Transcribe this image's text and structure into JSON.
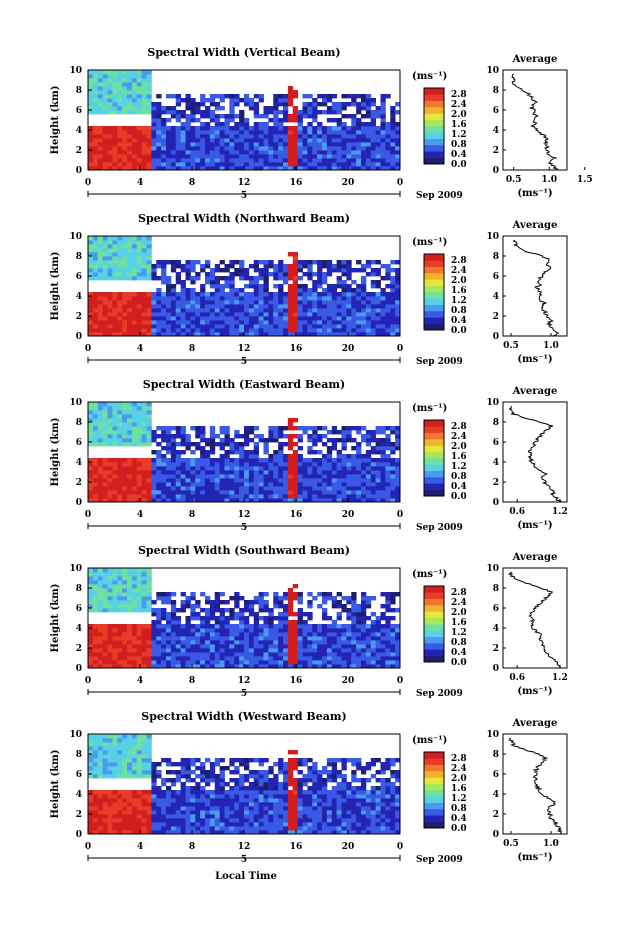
{
  "figure": {
    "xlabel_bottom": "Local Time",
    "date_label": "Sep 2009",
    "date_day": "5",
    "colorbar_unit": "(ms⁻¹)",
    "colorbar_ticks": [
      "0.0",
      "0.4",
      "0.8",
      "1.2",
      "1.6",
      "2.0",
      "2.4",
      "2.8"
    ],
    "colormap": [
      "#1e1e6e",
      "#2424b4",
      "#3a5ae6",
      "#4a9bf0",
      "#58d0e6",
      "#6ee0a0",
      "#a8e65a",
      "#e6e63c",
      "#f0b42c",
      "#f0782c",
      "#e63c28",
      "#d21e1e"
    ]
  },
  "chart_data": [
    {
      "type": "heatmap",
      "title": "Spectral Width (Vertical Beam)",
      "ylabel": "Height (km)",
      "x_ticks": [
        "0",
        "4",
        "8",
        "12",
        "16",
        "20",
        "0"
      ],
      "y_ticks": [
        "0",
        "2",
        "4",
        "6",
        "8",
        "10"
      ],
      "xlim": [
        0,
        24
      ],
      "ylim": [
        0,
        10
      ],
      "colorbar_range": [
        0.0,
        2.8
      ],
      "regions": [
        {
          "x": [
            0,
            4.7
          ],
          "y": [
            5.5,
            10
          ],
          "value": 1.1
        },
        {
          "x": [
            0,
            4.7
          ],
          "y": [
            0,
            4.5
          ],
          "value": 2.6
        },
        {
          "x": [
            4.7,
            24
          ],
          "y": [
            0,
            4.5
          ],
          "value": 0.5
        },
        {
          "x": [
            4.7,
            24
          ],
          "y": [
            4.5,
            7.5
          ],
          "value": 0.4
        },
        {
          "x": [
            15.4,
            16.2
          ],
          "y": [
            0.5,
            8.3
          ],
          "value": 2.8
        }
      ],
      "average_profile": {
        "title": "Average",
        "xlabel": "(ms⁻¹)",
        "x_ticks": [
          "0.5",
          "1.0",
          "1.5"
        ],
        "y_ticks": [
          "0",
          "2",
          "4",
          "6",
          "8",
          "10"
        ],
        "xlim": [
          0.35,
          1.25
        ],
        "ylim": [
          0,
          10
        ],
        "profile": [
          [
            1.1,
            0.0
          ],
          [
            1.05,
            0.4
          ],
          [
            1.0,
            0.8
          ],
          [
            1.08,
            1.2
          ],
          [
            1.0,
            1.6
          ],
          [
            0.96,
            2.0
          ],
          [
            0.97,
            2.4
          ],
          [
            0.95,
            2.8
          ],
          [
            0.97,
            3.2
          ],
          [
            0.9,
            3.6
          ],
          [
            0.82,
            4.0
          ],
          [
            0.78,
            4.4
          ],
          [
            0.8,
            4.8
          ],
          [
            0.82,
            5.2
          ],
          [
            0.8,
            5.6
          ],
          [
            0.78,
            6.0
          ],
          [
            0.75,
            6.4
          ],
          [
            0.8,
            6.8
          ],
          [
            0.76,
            7.2
          ],
          [
            0.7,
            7.6
          ],
          [
            0.62,
            8.0
          ],
          [
            0.52,
            8.4
          ],
          [
            0.5,
            8.8
          ],
          [
            0.48,
            9.2
          ],
          [
            0.5,
            9.6
          ]
        ]
      }
    },
    {
      "type": "heatmap",
      "title": "Spectral Width (Northward Beam)",
      "ylabel": "Height (km)",
      "x_ticks": [
        "0",
        "4",
        "8",
        "12",
        "16",
        "20",
        "0"
      ],
      "y_ticks": [
        "0",
        "2",
        "4",
        "6",
        "8",
        "10"
      ],
      "xlim": [
        0,
        24
      ],
      "ylim": [
        0,
        10
      ],
      "colorbar_range": [
        0.0,
        2.8
      ],
      "regions": [
        {
          "x": [
            0,
            4.7
          ],
          "y": [
            5.5,
            10
          ],
          "value": 1.1
        },
        {
          "x": [
            0,
            4.7
          ],
          "y": [
            0,
            4.5
          ],
          "value": 2.6
        },
        {
          "x": [
            4.7,
            24
          ],
          "y": [
            0,
            4.5
          ],
          "value": 0.5
        },
        {
          "x": [
            4.7,
            24
          ],
          "y": [
            4.5,
            7.5
          ],
          "value": 0.4
        },
        {
          "x": [
            15.4,
            16.2
          ],
          "y": [
            0.5,
            8.3
          ],
          "value": 2.8
        }
      ],
      "average_profile": {
        "title": "Average",
        "xlabel": "(ms⁻¹)",
        "x_ticks": [
          "0.5",
          "1.0"
        ],
        "y_ticks": [
          "0",
          "2",
          "4",
          "6",
          "8",
          "10"
        ],
        "xlim": [
          0.4,
          1.2
        ],
        "ylim": [
          0,
          10
        ],
        "profile": [
          [
            1.05,
            0.0
          ],
          [
            1.08,
            0.4
          ],
          [
            1.0,
            0.8
          ],
          [
            0.98,
            1.2
          ],
          [
            1.0,
            1.6
          ],
          [
            0.95,
            2.0
          ],
          [
            0.92,
            2.4
          ],
          [
            0.9,
            2.8
          ],
          [
            0.92,
            3.2
          ],
          [
            0.88,
            3.6
          ],
          [
            0.85,
            4.0
          ],
          [
            0.88,
            4.4
          ],
          [
            0.82,
            4.8
          ],
          [
            0.86,
            5.2
          ],
          [
            0.85,
            5.6
          ],
          [
            0.88,
            6.0
          ],
          [
            0.92,
            6.4
          ],
          [
            0.98,
            6.8
          ],
          [
            0.95,
            7.2
          ],
          [
            1.0,
            7.6
          ],
          [
            0.88,
            8.0
          ],
          [
            0.72,
            8.4
          ],
          [
            0.6,
            8.8
          ],
          [
            0.55,
            9.2
          ],
          [
            0.55,
            9.6
          ]
        ]
      }
    },
    {
      "type": "heatmap",
      "title": "Spectral Width (Eastward Beam)",
      "ylabel": "Height (km)",
      "x_ticks": [
        "0",
        "4",
        "8",
        "12",
        "16",
        "20",
        "0"
      ],
      "y_ticks": [
        "0",
        "2",
        "4",
        "6",
        "8",
        "10"
      ],
      "xlim": [
        0,
        24
      ],
      "ylim": [
        0,
        10
      ],
      "colorbar_range": [
        0.0,
        2.8
      ],
      "regions": [
        {
          "x": [
            0,
            4.7
          ],
          "y": [
            5.5,
            10
          ],
          "value": 1.1
        },
        {
          "x": [
            0,
            4.7
          ],
          "y": [
            0,
            4.5
          ],
          "value": 2.6
        },
        {
          "x": [
            4.7,
            24
          ],
          "y": [
            0,
            4.5
          ],
          "value": 0.5
        },
        {
          "x": [
            4.7,
            24
          ],
          "y": [
            4.5,
            7.5
          ],
          "value": 0.4
        },
        {
          "x": [
            15.4,
            16.2
          ],
          "y": [
            0.5,
            8.3
          ],
          "value": 2.8
        }
      ],
      "average_profile": {
        "title": "Average",
        "xlabel": "(ms⁻¹)",
        "x_ticks": [
          "0.6",
          "1.2"
        ],
        "y_ticks": [
          "0",
          "2",
          "4",
          "6",
          "8",
          "10"
        ],
        "xlim": [
          0.4,
          1.3
        ],
        "ylim": [
          0,
          10
        ],
        "profile": [
          [
            1.2,
            0.0
          ],
          [
            1.15,
            0.4
          ],
          [
            1.1,
            0.8
          ],
          [
            1.1,
            1.2
          ],
          [
            1.05,
            1.6
          ],
          [
            0.98,
            2.0
          ],
          [
            0.95,
            2.4
          ],
          [
            1.0,
            2.8
          ],
          [
            0.92,
            3.2
          ],
          [
            0.85,
            3.6
          ],
          [
            0.8,
            4.0
          ],
          [
            0.78,
            4.4
          ],
          [
            0.8,
            4.8
          ],
          [
            0.78,
            5.2
          ],
          [
            0.82,
            5.6
          ],
          [
            0.85,
            6.0
          ],
          [
            0.9,
            6.4
          ],
          [
            0.95,
            6.8
          ],
          [
            1.0,
            7.2
          ],
          [
            1.1,
            7.6
          ],
          [
            0.9,
            8.0
          ],
          [
            0.7,
            8.4
          ],
          [
            0.55,
            8.8
          ],
          [
            0.5,
            9.2
          ],
          [
            0.52,
            9.6
          ]
        ]
      }
    },
    {
      "type": "heatmap",
      "title": "Spectral Width (Southward Beam)",
      "ylabel": "Height (km)",
      "x_ticks": [
        "0",
        "4",
        "8",
        "12",
        "16",
        "20",
        "0"
      ],
      "y_ticks": [
        "0",
        "2",
        "4",
        "6",
        "8",
        "10"
      ],
      "xlim": [
        0,
        24
      ],
      "ylim": [
        0,
        10
      ],
      "colorbar_range": [
        0.0,
        2.8
      ],
      "regions": [
        {
          "x": [
            0,
            4.7
          ],
          "y": [
            5.5,
            10
          ],
          "value": 1.1
        },
        {
          "x": [
            0,
            4.7
          ],
          "y": [
            0,
            4.5
          ],
          "value": 2.6
        },
        {
          "x": [
            4.7,
            24
          ],
          "y": [
            0,
            4.5
          ],
          "value": 0.5
        },
        {
          "x": [
            4.7,
            24
          ],
          "y": [
            4.5,
            7.5
          ],
          "value": 0.4
        },
        {
          "x": [
            15.4,
            16.2
          ],
          "y": [
            0.5,
            8.3
          ],
          "value": 2.8
        }
      ],
      "average_profile": {
        "title": "Average",
        "xlabel": "(ms⁻¹)",
        "x_ticks": [
          "0.6",
          "1.2"
        ],
        "y_ticks": [
          "0",
          "2",
          "4",
          "6",
          "8",
          "10"
        ],
        "xlim": [
          0.4,
          1.3
        ],
        "ylim": [
          0,
          10
        ],
        "profile": [
          [
            1.2,
            0.0
          ],
          [
            1.15,
            0.4
          ],
          [
            1.12,
            0.8
          ],
          [
            1.05,
            1.2
          ],
          [
            1.0,
            1.6
          ],
          [
            0.98,
            2.0
          ],
          [
            0.95,
            2.4
          ],
          [
            0.92,
            2.8
          ],
          [
            0.95,
            3.2
          ],
          [
            0.88,
            3.6
          ],
          [
            0.82,
            4.0
          ],
          [
            0.8,
            4.4
          ],
          [
            0.82,
            4.8
          ],
          [
            0.78,
            5.2
          ],
          [
            0.8,
            5.6
          ],
          [
            0.85,
            6.0
          ],
          [
            0.92,
            6.4
          ],
          [
            0.98,
            6.8
          ],
          [
            1.02,
            7.2
          ],
          [
            1.08,
            7.6
          ],
          [
            0.95,
            8.0
          ],
          [
            0.78,
            8.4
          ],
          [
            0.6,
            8.8
          ],
          [
            0.52,
            9.2
          ],
          [
            0.5,
            9.6
          ]
        ]
      }
    },
    {
      "type": "heatmap",
      "title": "Spectral Width (Westward Beam)",
      "ylabel": "Height (km)",
      "x_ticks": [
        "0",
        "4",
        "8",
        "12",
        "16",
        "20",
        "0"
      ],
      "y_ticks": [
        "0",
        "2",
        "4",
        "6",
        "8",
        "10"
      ],
      "xlim": [
        0,
        24
      ],
      "ylim": [
        0,
        10
      ],
      "colorbar_range": [
        0.0,
        2.8
      ],
      "regions": [
        {
          "x": [
            0,
            4.7
          ],
          "y": [
            5.5,
            10
          ],
          "value": 1.1
        },
        {
          "x": [
            0,
            4.7
          ],
          "y": [
            0,
            4.5
          ],
          "value": 2.6
        },
        {
          "x": [
            4.7,
            24
          ],
          "y": [
            0,
            4.5
          ],
          "value": 0.5
        },
        {
          "x": [
            4.7,
            24
          ],
          "y": [
            4.5,
            7.5
          ],
          "value": 0.4
        },
        {
          "x": [
            15.4,
            16.2
          ],
          "y": [
            0.5,
            8.3
          ],
          "value": 2.8
        }
      ],
      "average_profile": {
        "title": "Average",
        "xlabel": "(ms⁻¹)",
        "x_ticks": [
          "0.5",
          "1.0"
        ],
        "y_ticks": [
          "0",
          "2",
          "4",
          "6",
          "8",
          "10"
        ],
        "xlim": [
          0.4,
          1.2
        ],
        "ylim": [
          0,
          10
        ],
        "profile": [
          [
            1.12,
            0.0
          ],
          [
            1.1,
            0.4
          ],
          [
            1.08,
            0.8
          ],
          [
            1.05,
            1.2
          ],
          [
            1.0,
            1.6
          ],
          [
            0.98,
            2.0
          ],
          [
            0.95,
            2.4
          ],
          [
            1.0,
            2.8
          ],
          [
            1.05,
            3.2
          ],
          [
            0.95,
            3.6
          ],
          [
            0.88,
            4.0
          ],
          [
            0.85,
            4.4
          ],
          [
            0.82,
            4.8
          ],
          [
            0.8,
            5.2
          ],
          [
            0.8,
            5.6
          ],
          [
            0.8,
            6.0
          ],
          [
            0.82,
            6.4
          ],
          [
            0.85,
            6.8
          ],
          [
            0.9,
            7.2
          ],
          [
            0.92,
            7.6
          ],
          [
            0.85,
            8.0
          ],
          [
            0.7,
            8.4
          ],
          [
            0.55,
            8.8
          ],
          [
            0.5,
            9.2
          ],
          [
            0.48,
            9.6
          ]
        ]
      }
    }
  ]
}
